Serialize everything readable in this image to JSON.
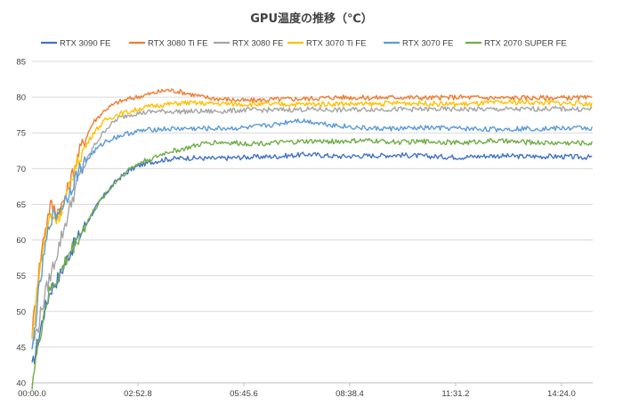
{
  "chart_data": {
    "type": "line",
    "title": "GPU温度の推移（℃）",
    "xlabel": "",
    "ylabel": "",
    "ylim": [
      40,
      85
    ],
    "y_ticks": [
      40,
      45,
      50,
      55,
      60,
      65,
      70,
      75,
      80,
      85
    ],
    "x_tick_labels": [
      "00:00.0",
      "02:52.8",
      "05:45.6",
      "08:38.4",
      "11:31.2",
      "14:24.0"
    ],
    "x_tick_seconds": [
      0,
      172.8,
      345.6,
      518.4,
      691.2,
      864.0
    ],
    "xlim_seconds": [
      0,
      915
    ],
    "grid": true,
    "legend_position": "top",
    "series": [
      {
        "name": "RTX 3090 FE",
        "color": "#4472c4",
        "x": [
          0,
          10,
          20,
          30,
          45,
          60,
          80,
          100,
          120,
          140,
          160,
          180,
          200,
          220,
          250,
          300,
          350,
          400,
          450,
          500,
          550,
          600,
          650,
          700,
          750,
          800,
          850,
          900,
          915
        ],
        "y": [
          42,
          46,
          50,
          53,
          55,
          58,
          61,
          64,
          66.5,
          68.5,
          69.8,
          70.6,
          71,
          71.3,
          71.5,
          71.4,
          71.6,
          71.7,
          72,
          71.7,
          71.8,
          71.9,
          71.7,
          71.6,
          71.8,
          71.7,
          71.7,
          71.6,
          71.6
        ]
      },
      {
        "name": "RTX 3080 Ti FE",
        "color": "#ed7d31",
        "x": [
          0,
          10,
          20,
          30,
          40,
          50,
          60,
          70,
          80,
          100,
          120,
          140,
          160,
          180,
          200,
          220,
          240,
          260,
          280,
          300,
          350,
          400,
          450,
          500,
          550,
          600,
          650,
          700,
          750,
          800,
          850,
          900,
          915
        ],
        "y": [
          47,
          55,
          61,
          65,
          64,
          65,
          67.5,
          70.5,
          73,
          76.5,
          78.3,
          79.3,
          79.8,
          80.2,
          80.6,
          81,
          80.8,
          80.4,
          80,
          79.8,
          79.5,
          79.7,
          79.8,
          80,
          79.9,
          80,
          79.9,
          80,
          79.9,
          79.9,
          79.9,
          79.9,
          79.8
        ]
      },
      {
        "name": "RTX 3080 FE",
        "color": "#a5a5a5",
        "x": [
          0,
          10,
          20,
          30,
          40,
          50,
          60,
          70,
          80,
          100,
          120,
          140,
          160,
          180,
          200,
          250,
          300,
          350,
          400,
          450,
          500,
          550,
          600,
          650,
          700,
          750,
          800,
          850,
          900,
          915
        ],
        "y": [
          45,
          48,
          52,
          55,
          58,
          61,
          64,
          67,
          69.5,
          73,
          75.5,
          77,
          77.6,
          77.8,
          78,
          78,
          78,
          78.2,
          78.2,
          78.3,
          78.2,
          78.3,
          78.3,
          78.3,
          78.3,
          78.3,
          78.3,
          78.4,
          78.3,
          78.3
        ]
      },
      {
        "name": "RTX 3070 Ti FE",
        "color": "#ffc000",
        "x": [
          0,
          10,
          20,
          30,
          40,
          50,
          60,
          70,
          80,
          100,
          120,
          140,
          160,
          180,
          200,
          220,
          250,
          300,
          350,
          400,
          450,
          500,
          550,
          600,
          650,
          700,
          750,
          800,
          850,
          900,
          915
        ],
        "y": [
          46,
          54,
          60,
          63.5,
          63,
          64.5,
          67,
          70,
          72,
          75,
          76.8,
          77.6,
          78,
          78.5,
          78.8,
          79,
          79.2,
          79.1,
          79,
          79,
          79,
          79.1,
          79,
          79.2,
          79.1,
          79,
          79.2,
          79.3,
          79.2,
          79.1,
          79
        ]
      },
      {
        "name": "RTX 3070 FE",
        "color": "#5b9bd5",
        "x": [
          0,
          10,
          20,
          30,
          40,
          50,
          60,
          70,
          80,
          100,
          120,
          140,
          160,
          180,
          200,
          250,
          300,
          350,
          400,
          430,
          460,
          500,
          550,
          600,
          650,
          700,
          750,
          800,
          850,
          900,
          915
        ],
        "y": [
          44,
          52,
          58,
          63,
          63.5,
          65,
          66.5,
          68.5,
          70.2,
          72.3,
          73.8,
          74.5,
          75,
          75.3,
          75.5,
          75.6,
          75.6,
          75.7,
          76.2,
          76.8,
          76.5,
          76,
          75.6,
          75.6,
          75.7,
          75.6,
          75.5,
          75.6,
          75.6,
          75.7,
          75.6
        ]
      },
      {
        "name": "RTX 2070 SUPER FE",
        "color": "#70ad47",
        "x": [
          0,
          10,
          20,
          30,
          45,
          60,
          80,
          100,
          120,
          140,
          160,
          180,
          200,
          220,
          250,
          280,
          300,
          350,
          400,
          450,
          500,
          550,
          600,
          650,
          700,
          750,
          800,
          850,
          900,
          915
        ],
        "y": [
          40,
          45,
          50,
          53,
          55,
          58,
          61,
          64,
          66.5,
          68.5,
          70,
          71,
          71.5,
          72.3,
          72.8,
          73.5,
          73.7,
          73.5,
          73.6,
          73.8,
          73.8,
          73.9,
          73.7,
          73.8,
          73.6,
          73.9,
          73.7,
          73.6,
          73.6,
          73.5
        ]
      }
    ]
  }
}
